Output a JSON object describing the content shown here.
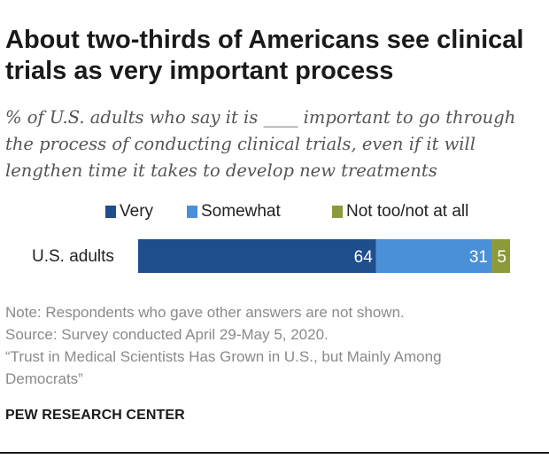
{
  "title": "About two-thirds of Americans see clinical trials as very important process",
  "subtitle": "% of U.S. adults who say it is ____ important to go through the process of conducting clinical trials, even if it will lengthen time it takes to develop new treatments",
  "colors": {
    "very": "#1f4e8c",
    "somewhat": "#4a90d9",
    "not_too": "#8c9a3c"
  },
  "chart_data": {
    "type": "bar",
    "orientation": "horizontal",
    "stacked": true,
    "categories": [
      "U.S. adults"
    ],
    "series": [
      {
        "name": "Very",
        "values": [
          64
        ]
      },
      {
        "name": "Somewhat",
        "values": [
          31
        ]
      },
      {
        "name": "Not too/not at all",
        "values": [
          5
        ]
      }
    ],
    "legend_position": "top",
    "xlim": [
      0,
      100
    ],
    "grid": false
  },
  "notes": {
    "note": "Note: Respondents who gave other answers are not shown.",
    "source": "Source: Survey conducted April 29-May 5, 2020.",
    "report_line1": "“Trust in Medical Scientists Has Grown in U.S., but Mainly Among",
    "report_line2": "Democrats”"
  },
  "brand": "PEW RESEARCH CENTER"
}
